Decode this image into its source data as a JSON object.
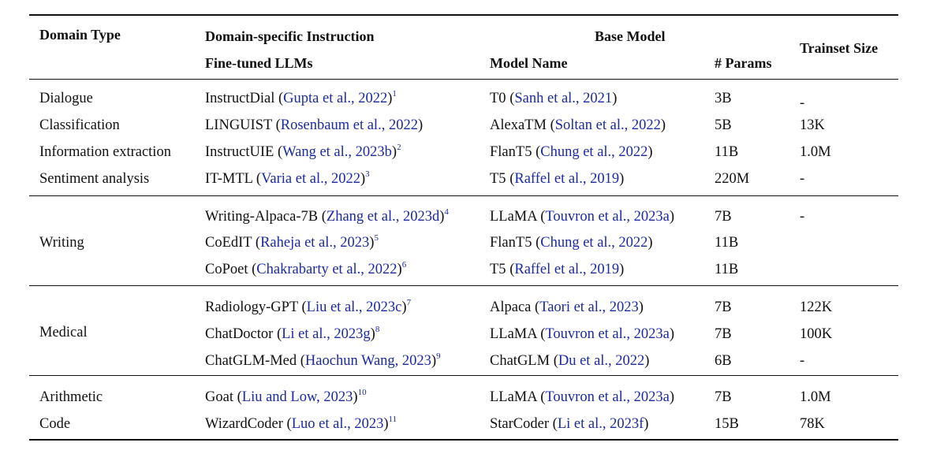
{
  "header": {
    "domain_type": "Domain Type",
    "instruction_line1": "Domain-specific Instruction",
    "instruction_line2": "Fine-tuned LLMs",
    "base_model": "Base Model",
    "model_name": "Model Name",
    "params": "# Params",
    "trainset": "Trainset Size"
  },
  "groups": [
    {
      "rows": [
        {
          "domain": "Dialogue",
          "llm": "InstructDial",
          "llm_cite": "Gupta et al., 2022",
          "fn": "1",
          "base": "T0",
          "base_cite": "Sanh et al., 2021",
          "params": "3B",
          "trainset": "-"
        },
        {
          "domain": "Classification",
          "llm": "LINGUIST",
          "llm_cite": "Rosenbaum et al., 2022",
          "fn": "",
          "base": "AlexaTM",
          "base_cite": "Soltan et al., 2022",
          "params": "5B",
          "trainset": "13K"
        },
        {
          "domain": "Information extraction",
          "llm": "InstructUIE",
          "llm_cite": "Wang et al., 2023b",
          "fn": "2",
          "base": "FlanT5",
          "base_cite": "Chung et al., 2022",
          "params": "11B",
          "trainset": "1.0M"
        },
        {
          "domain": "Sentiment analysis",
          "llm": "IT-MTL",
          "llm_cite": "Varia et al., 2022",
          "fn": "3",
          "base": "T5",
          "base_cite": "Raffel et al., 2019",
          "params": "220M",
          "trainset": "-"
        }
      ]
    },
    {
      "domain": "Writing",
      "rows": [
        {
          "llm": "Writing-Alpaca-7B",
          "llm_cite": "Zhang et al., 2023d",
          "fn": "4",
          "base": "LLaMA",
          "base_cite": "Touvron et al., 2023a",
          "params": "7B",
          "trainset": "-"
        },
        {
          "llm": "CoEdIT",
          "llm_cite": "Raheja et al., 2023",
          "fn": "5",
          "base": "FlanT5",
          "base_cite": "Chung et al., 2022",
          "params": "11B",
          "trainset": ""
        },
        {
          "llm": "CoPoet",
          "llm_cite": "Chakrabarty et al., 2022",
          "fn": "6",
          "base": "T5",
          "base_cite": "Raffel et al., 2019",
          "params": "11B",
          "trainset": ""
        }
      ]
    },
    {
      "domain": "Medical",
      "rows": [
        {
          "llm": "Radiology-GPT",
          "llm_cite": "Liu et al., 2023c",
          "fn": "7",
          "base": "Alpaca",
          "base_cite": "Taori et al., 2023",
          "params": "7B",
          "trainset": "122K"
        },
        {
          "llm": "ChatDoctor",
          "llm_cite": "Li et al., 2023g",
          "fn": "8",
          "base": "LLaMA",
          "base_cite": "Touvron et al., 2023a",
          "params": "7B",
          "trainset": "100K"
        },
        {
          "llm": "ChatGLM-Med",
          "llm_cite": "Haochun Wang, 2023",
          "fn": "9",
          "base": "ChatGLM",
          "base_cite": "Du et al., 2022",
          "params": "6B",
          "trainset": "-"
        }
      ]
    },
    {
      "rows": [
        {
          "domain": "Arithmetic",
          "llm": "Goat",
          "llm_cite": "Liu and Low, 2023",
          "fn": "10",
          "base": "LLaMA",
          "base_cite": "Touvron et al., 2023a",
          "params": "7B",
          "trainset": "1.0M"
        },
        {
          "domain": "Code",
          "llm": "WizardCoder",
          "llm_cite": "Luo et al., 2023",
          "fn": "11",
          "base": "StarCoder",
          "base_cite": "Li et al., 2023f",
          "params": "15B",
          "trainset": "78K"
        }
      ]
    }
  ]
}
